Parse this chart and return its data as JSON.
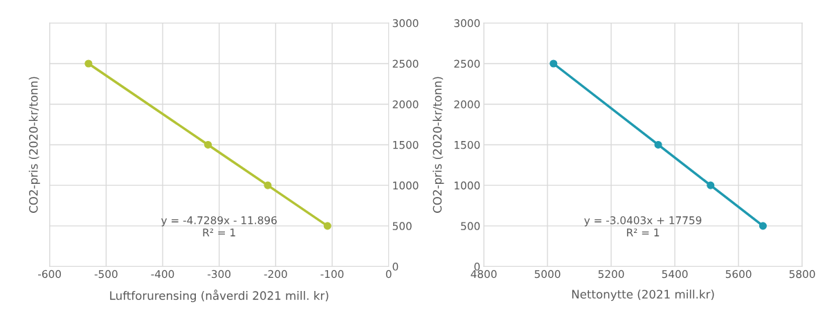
{
  "chart_data": [
    {
      "type": "line",
      "xlabel": "Luftforurensing (nåverdi 2021 mill. kr)",
      "ylabel": "CO2-pris (2020-kr/tonn)",
      "x": [
        -531.2,
        -319.7,
        -214.0,
        -108.3
      ],
      "series": [
        {
          "color": "#b3c335",
          "values": [
            2500,
            1500,
            1000,
            500
          ]
        }
      ],
      "xlim": [
        -600,
        0
      ],
      "xticks": [
        -600,
        -500,
        -400,
        -300,
        -200,
        -100,
        0
      ],
      "ylim": [
        0,
        3000
      ],
      "yticks": [
        0,
        500,
        1000,
        1500,
        2000,
        2500,
        3000
      ],
      "grid": true,
      "marker": "circle",
      "line_style": "solid",
      "annotations": [
        "y = -4.7289x - 11.896",
        "R² = 1"
      ]
    },
    {
      "type": "line",
      "xlabel": "Nettonytte (2021 mill.kr)",
      "ylabel": "CO2-pris (2020-kr/tonn)",
      "x": [
        5018.9,
        5347.8,
        5512.3,
        5676.8
      ],
      "series": [
        {
          "color": "#1f9ab0",
          "values": [
            2500,
            1500,
            1000,
            500
          ]
        }
      ],
      "xlim": [
        4800,
        5800
      ],
      "xticks": [
        4800,
        5000,
        5200,
        5400,
        5600,
        5800
      ],
      "ylim": [
        0,
        3000
      ],
      "yticks": [
        0,
        500,
        1000,
        1500,
        2000,
        2500,
        3000
      ],
      "grid": true,
      "marker": "circle",
      "line_style": "solid",
      "annotations": [
        "y = -3.0403x + 17759",
        "R² = 1"
      ]
    }
  ]
}
